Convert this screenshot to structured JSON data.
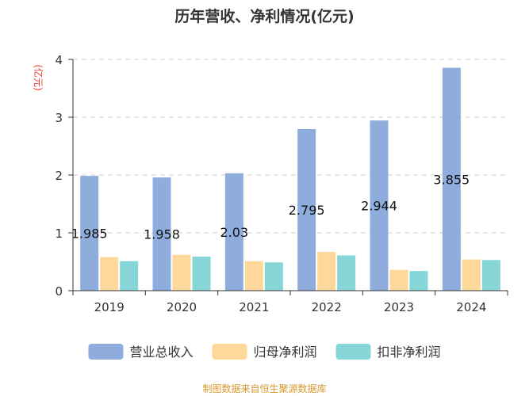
{
  "chart_data": {
    "type": "bar",
    "title": "历年营收、净利情况(亿元)",
    "unit_label": "(亿元)",
    "categories": [
      "2019",
      "2020",
      "2021",
      "2022",
      "2023",
      "2024"
    ],
    "ylim": [
      0,
      4
    ],
    "yticks": [
      "0",
      "1",
      "2",
      "3",
      "4"
    ],
    "grid": true,
    "legend_position": "bottom",
    "series": [
      {
        "name": "营业总收入",
        "color": "#8eaddc",
        "values": [
          1.985,
          1.958,
          2.03,
          2.795,
          2.944,
          3.855
        ],
        "labels": [
          "1.985",
          "1.958",
          "2.03",
          "2.795",
          "2.944",
          "3.855"
        ]
      },
      {
        "name": "归母净利润",
        "color": "#fdd89a",
        "values": [
          0.58,
          0.62,
          0.51,
          0.67,
          0.36,
          0.54
        ]
      },
      {
        "name": "扣非净利润",
        "color": "#86d6d8",
        "values": [
          0.51,
          0.59,
          0.49,
          0.61,
          0.34,
          0.53
        ]
      }
    ],
    "source": "制图数据来自恒生聚源数据库"
  }
}
